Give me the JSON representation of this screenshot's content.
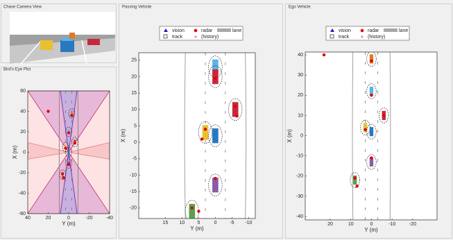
{
  "panels": [
    {
      "title": "Chase Camera View"
    },
    {
      "title": "Bird's-Eye Plot"
    },
    {
      "title": "Passing Vehicle"
    },
    {
      "title": "Ego Vehicle"
    }
  ],
  "plots": [
    {
      "xlabel": "Y (m)",
      "ylabel": "X (m)",
      "xlim": [
        40,
        -40
      ],
      "ylim": [
        -60,
        60
      ],
      "xticks": [
        40,
        20,
        0,
        -20,
        -40
      ],
      "yticks": [
        60,
        40,
        20,
        0,
        -20,
        -40,
        -60
      ],
      "vehicles": [
        {
          "y": -3,
          "x": 38,
          "color": "#e07a2a"
        },
        {
          "y": 0,
          "x": 20,
          "color": "#5ab4e6"
        },
        {
          "y": -6,
          "x": 10,
          "color": "#c8283c"
        },
        {
          "y": 3,
          "x": 5,
          "color": "#e8c030"
        },
        {
          "y": 0,
          "x": 0,
          "color": "#2a78c0"
        },
        {
          "y": 0,
          "x": -11,
          "color": "#8c5aa8"
        },
        {
          "y": 6,
          "x": -22,
          "color": "#5aa050"
        }
      ],
      "radar": [
        {
          "y": 20,
          "x": 40
        },
        {
          "y": -3,
          "x": 36
        },
        {
          "y": 0,
          "x": 19
        },
        {
          "y": -6,
          "x": 9
        },
        {
          "y": 3,
          "x": 4
        },
        {
          "y": 0,
          "x": -12
        },
        {
          "y": 6,
          "x": -21
        },
        {
          "y": 5,
          "x": -25
        }
      ]
    },
    {
      "xlabel": "Y (m)",
      "ylabel": "X (m)",
      "xlim": [
        23,
        -12
      ],
      "ylim": [
        -23.2,
        27.3
      ],
      "xticks": [
        15,
        10,
        5,
        0,
        -5,
        -10
      ],
      "yticks": [
        25,
        20,
        15,
        10,
        5,
        0,
        -5,
        -10,
        -15,
        -20
      ],
      "legend": {
        "vision": "vision",
        "radar": "radar",
        "lane": "lane",
        "track": "track",
        "history": "(history)"
      },
      "vehicles": [
        {
          "y": 0,
          "x": 23,
          "color": "#5ab4e6"
        },
        {
          "y": 0,
          "x": 20,
          "color": "#c8283c"
        },
        {
          "y": -6,
          "x": 10,
          "color": "#c8283c"
        },
        {
          "y": 3,
          "x": 3,
          "color": "#e8c030"
        },
        {
          "y": 0,
          "x": 2,
          "color": "#2a78c0"
        },
        {
          "y": 0,
          "x": -13,
          "color": "#8c5aa8"
        },
        {
          "y": 7,
          "x": -21,
          "color": "#5aa050"
        }
      ],
      "radar": [
        {
          "y": 0,
          "x": 19.5
        },
        {
          "y": -6,
          "x": 11
        },
        {
          "y": -6.5,
          "x": 8
        },
        {
          "y": 3,
          "x": 4
        },
        {
          "y": 4,
          "x": 1
        },
        {
          "y": 0,
          "x": -11
        },
        {
          "y": 7,
          "x": -20
        },
        {
          "y": 5,
          "x": -21
        }
      ]
    },
    {
      "xlabel": "Y (m)",
      "ylabel": "X (m)",
      "xlim": [
        32.1,
        -31.8
      ],
      "ylim": [
        -41.7,
        41.4
      ],
      "xticks": [
        20,
        10,
        0,
        -10,
        -20
      ],
      "yticks": [
        40,
        30,
        20,
        10,
        0,
        -10,
        -20,
        -30,
        -40
      ],
      "legend": {
        "vision": "vision",
        "radar": "radar",
        "lane": "lane",
        "track": "track",
        "history": "(history)"
      },
      "vehicles": [
        {
          "y": 0,
          "x": 38,
          "color": "#e07a2a"
        },
        {
          "y": 0,
          "x": 22,
          "color": "#5ab4e6"
        },
        {
          "y": -6,
          "x": 10,
          "color": "#c8283c"
        },
        {
          "y": 3,
          "x": 4,
          "color": "#e8c030"
        },
        {
          "y": 0,
          "x": 2,
          "color": "#2a78c0"
        },
        {
          "y": 0,
          "x": -13,
          "color": "#8c5aa8"
        },
        {
          "y": 8,
          "x": -22,
          "color": "#5aa050"
        }
      ],
      "radar": [
        {
          "y": 23,
          "x": 40
        },
        {
          "y": 0,
          "x": 37
        },
        {
          "y": 0,
          "x": 20
        },
        {
          "y": -6,
          "x": 10
        },
        {
          "y": 3,
          "x": 3
        },
        {
          "y": 0,
          "x": -11
        },
        {
          "y": 8,
          "x": -21
        },
        {
          "y": 7,
          "x": -25
        }
      ]
    }
  ]
}
